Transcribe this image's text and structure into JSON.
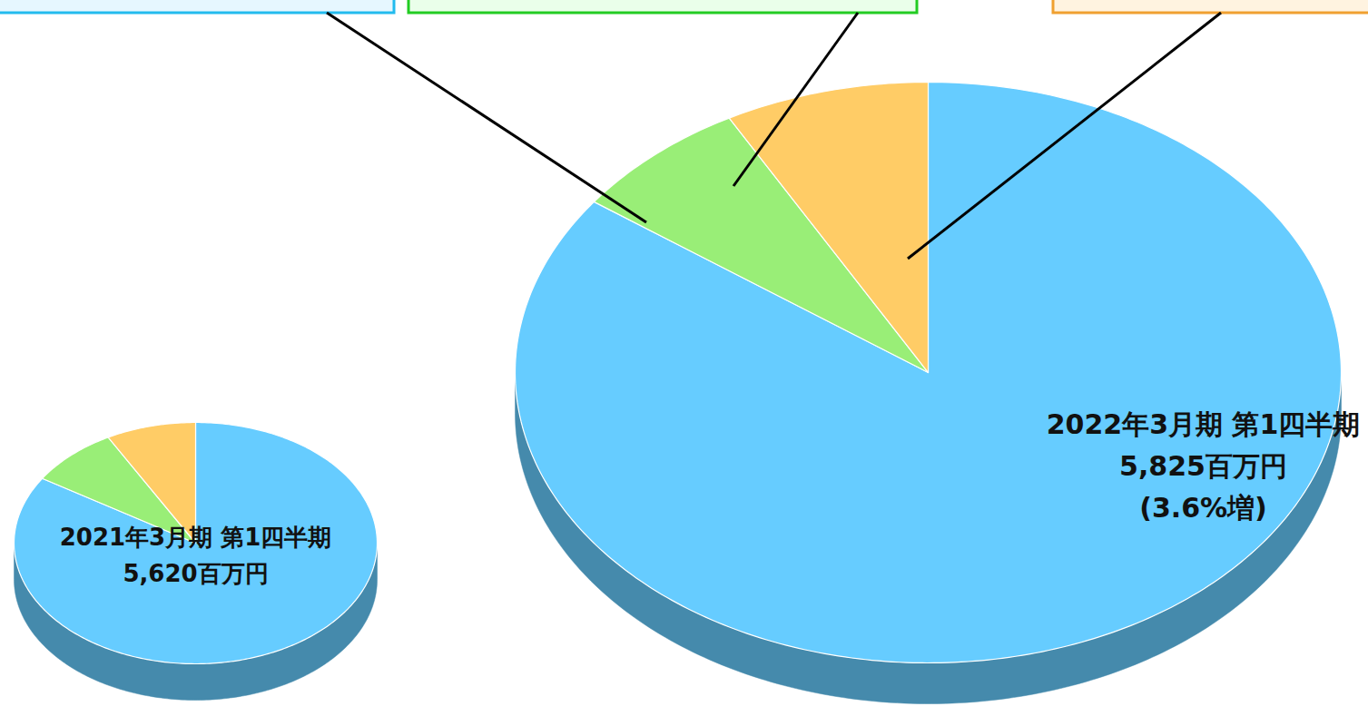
{
  "chart_data": [
    {
      "type": "pie",
      "title": "2021年3月期 第1四半期",
      "subtitle": "5,620百万円",
      "values": [
        84,
        8,
        8
      ],
      "colors": [
        "#66ccff",
        "#99ee77",
        "#ffcc66"
      ]
    },
    {
      "type": "pie",
      "title": "2022年3月期 第1四半期",
      "subtitle": "5,825百万円",
      "annotations": [
        "(3.6%増)"
      ],
      "values": [
        85,
        7,
        8
      ],
      "colors": [
        "#66ccff",
        "#99ee77",
        "#ffcc66"
      ]
    }
  ]
}
